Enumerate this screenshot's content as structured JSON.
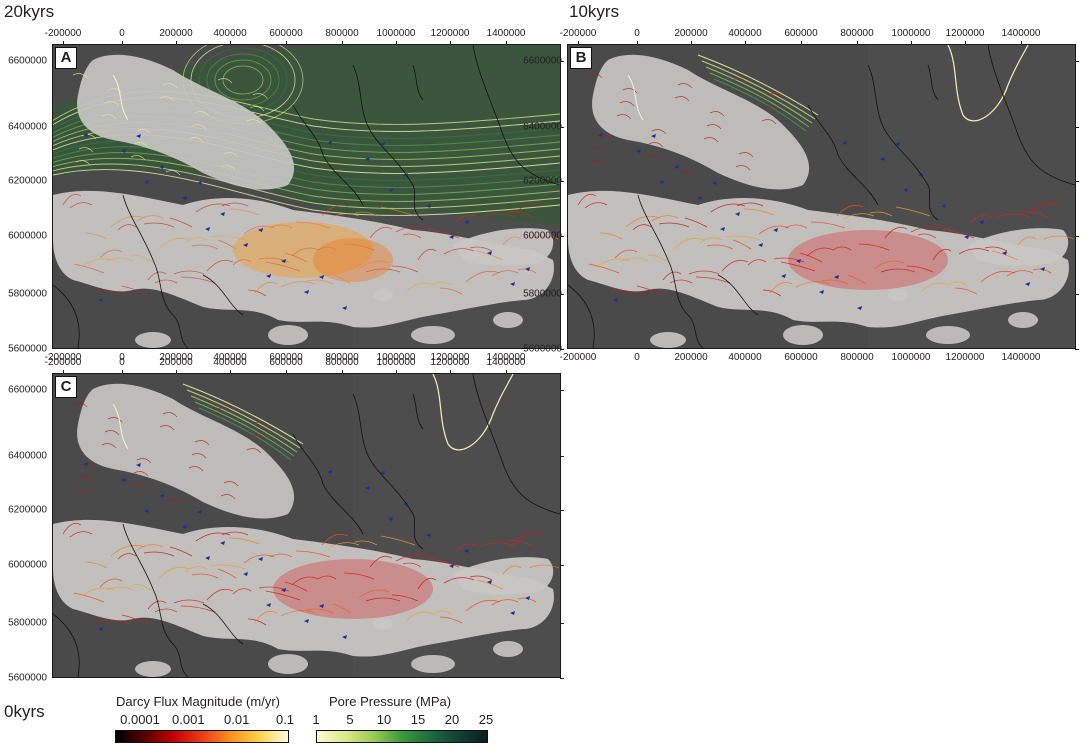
{
  "panels": [
    {
      "letter": "A",
      "time": "20kyrs",
      "pressure": "strong"
    },
    {
      "letter": "B",
      "time": "10kyrs",
      "pressure": "weak"
    },
    {
      "letter": "C",
      "time": "0kyrs",
      "pressure": "weak"
    }
  ],
  "x_ticks": [
    "-200000",
    "0",
    "200000",
    "400000",
    "600000",
    "800000",
    "1000000",
    "1200000",
    "1400000"
  ],
  "y_ticks": [
    "6600000",
    "6400000",
    "6200000",
    "6000000",
    "5800000",
    "5600000"
  ],
  "legend": {
    "flux": {
      "title": "Darcy Flux Magnitude (m/yr)",
      "ticks": [
        "0.0001",
        "0.001",
        "0.01",
        "0.1"
      ],
      "colors": [
        "#000000",
        "#5a0000",
        "#c40000",
        "#ee3b1b",
        "#f7911e",
        "#fbd24a",
        "#fffde0"
      ]
    },
    "pressure": {
      "title": "Pore Pressure (MPa)",
      "ticks": [
        "1",
        "5",
        "10",
        "15",
        "20",
        "25"
      ],
      "colors": [
        "#fffad0",
        "#dbe98a",
        "#9acb56",
        "#3a9a3c",
        "#1f6b3c",
        "#153f38",
        "#0a1e22"
      ]
    }
  },
  "colors": {
    "land": "#4a4a4a",
    "ice": "#c8c6c2",
    "coast": "#111111",
    "flow_vector": "#1f2f9a"
  }
}
